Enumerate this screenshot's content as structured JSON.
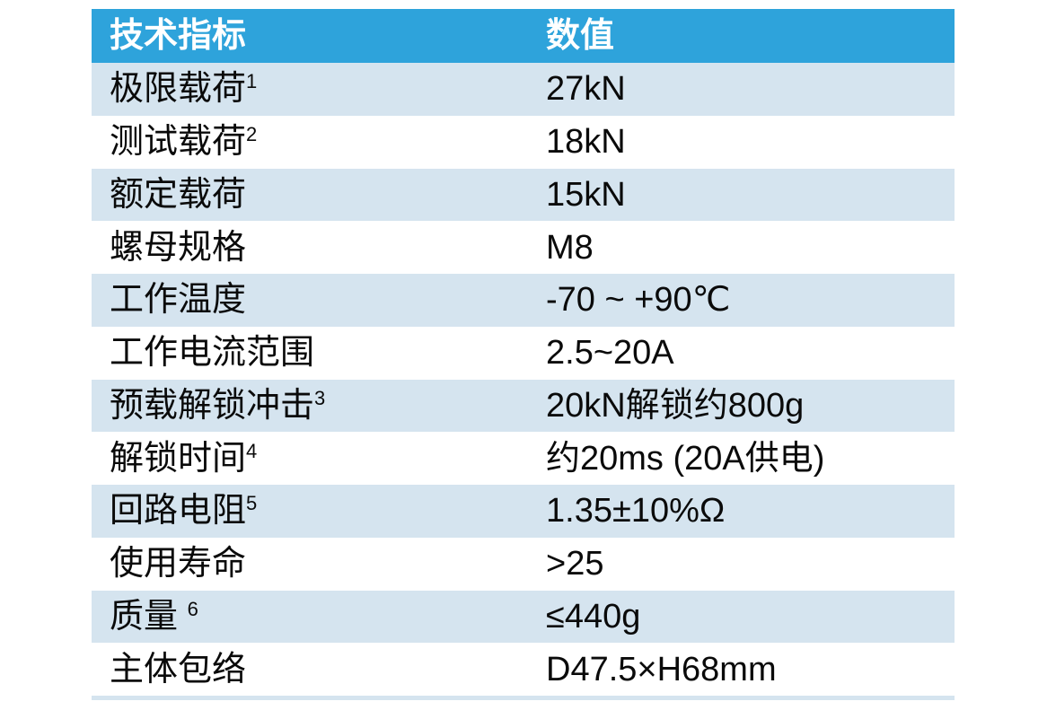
{
  "table": {
    "columns": [
      "技术指标",
      "数值"
    ],
    "header_bg": "#2ea3db",
    "header_text_color": "#ffffff",
    "shaded_row_bg": "#d5e4ef",
    "text_color": "#0a0a0a",
    "rows": [
      {
        "indicator": "极限载荷",
        "sup": "1",
        "value": "27kN",
        "shaded": true
      },
      {
        "indicator": "测试载荷",
        "sup": "2",
        "value": "18kN",
        "shaded": false
      },
      {
        "indicator": "额定载荷",
        "sup": "",
        "value": "15kN",
        "shaded": true
      },
      {
        "indicator": "螺母规格",
        "sup": "",
        "value": "M8",
        "shaded": false
      },
      {
        "indicator": "工作温度",
        "sup": "",
        "value": "-70 ~ +90℃",
        "shaded": true
      },
      {
        "indicator": "工作电流范围",
        "sup": "",
        "value": "2.5~20A",
        "shaded": false
      },
      {
        "indicator": "预载解锁冲击",
        "sup": "3",
        "value": "20kN解锁约800g",
        "shaded": true
      },
      {
        "indicator": "解锁时间",
        "sup": "4",
        "value": "约20ms (20A供电)",
        "shaded": false
      },
      {
        "indicator": "回路电阻",
        "sup": "5",
        "value": "1.35±10%Ω",
        "shaded": true
      },
      {
        "indicator": "使用寿命",
        "sup": "",
        "value": ">25",
        "shaded": false
      },
      {
        "indicator": "质量 ",
        "sup": "6",
        "value": "≤440g",
        "shaded": true
      },
      {
        "indicator": "主体包络",
        "sup": "",
        "value": "D47.5×H68mm",
        "shaded": false
      }
    ]
  }
}
